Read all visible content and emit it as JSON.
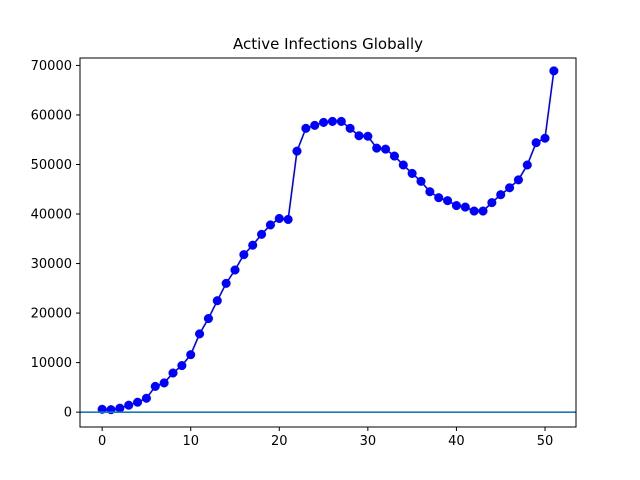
{
  "chart_data": {
    "type": "line",
    "title": "Active Infections Globally",
    "xlabel": "",
    "ylabel": "",
    "xlim": [
      -2.5,
      53.5
    ],
    "ylim": [
      -3000,
      71500
    ],
    "x_ticks": [
      0,
      10,
      20,
      30,
      40,
      50
    ],
    "y_ticks": [
      0,
      10000,
      20000,
      30000,
      40000,
      50000,
      60000,
      70000
    ],
    "grid": false,
    "legend": "none",
    "series": [
      {
        "color": "#0000ff",
        "marker": "circle",
        "x": [
          0,
          1,
          2,
          3,
          4,
          5,
          6,
          7,
          8,
          9,
          10,
          11,
          12,
          13,
          14,
          15,
          16,
          17,
          18,
          19,
          20,
          21,
          22,
          23,
          24,
          25,
          26,
          27,
          28,
          29,
          30,
          31,
          32,
          33,
          34,
          35,
          36,
          37,
          38,
          39,
          40,
          41,
          42,
          43,
          44,
          45,
          46,
          47,
          48,
          49,
          50,
          51
        ],
        "y": [
          580,
          500,
          800,
          1400,
          2000,
          2800,
          5200,
          5900,
          7900,
          9400,
          11600,
          15800,
          18900,
          22500,
          26000,
          28700,
          31800,
          33700,
          35900,
          37800,
          39100,
          38900,
          52700,
          57300,
          57900,
          58500,
          58700,
          58700,
          57300,
          55800,
          55700,
          53300,
          53100,
          51700,
          49900,
          48200,
          46600,
          44500,
          43300,
          42700,
          41700,
          41400,
          40600,
          40600,
          42300,
          43900,
          45300,
          46900,
          49900,
          54400,
          55300,
          68900
        ]
      },
      {
        "color": "#1f77b4",
        "marker": "none",
        "x": [
          -2.5,
          53.5
        ],
        "y": [
          0,
          0
        ]
      }
    ]
  }
}
